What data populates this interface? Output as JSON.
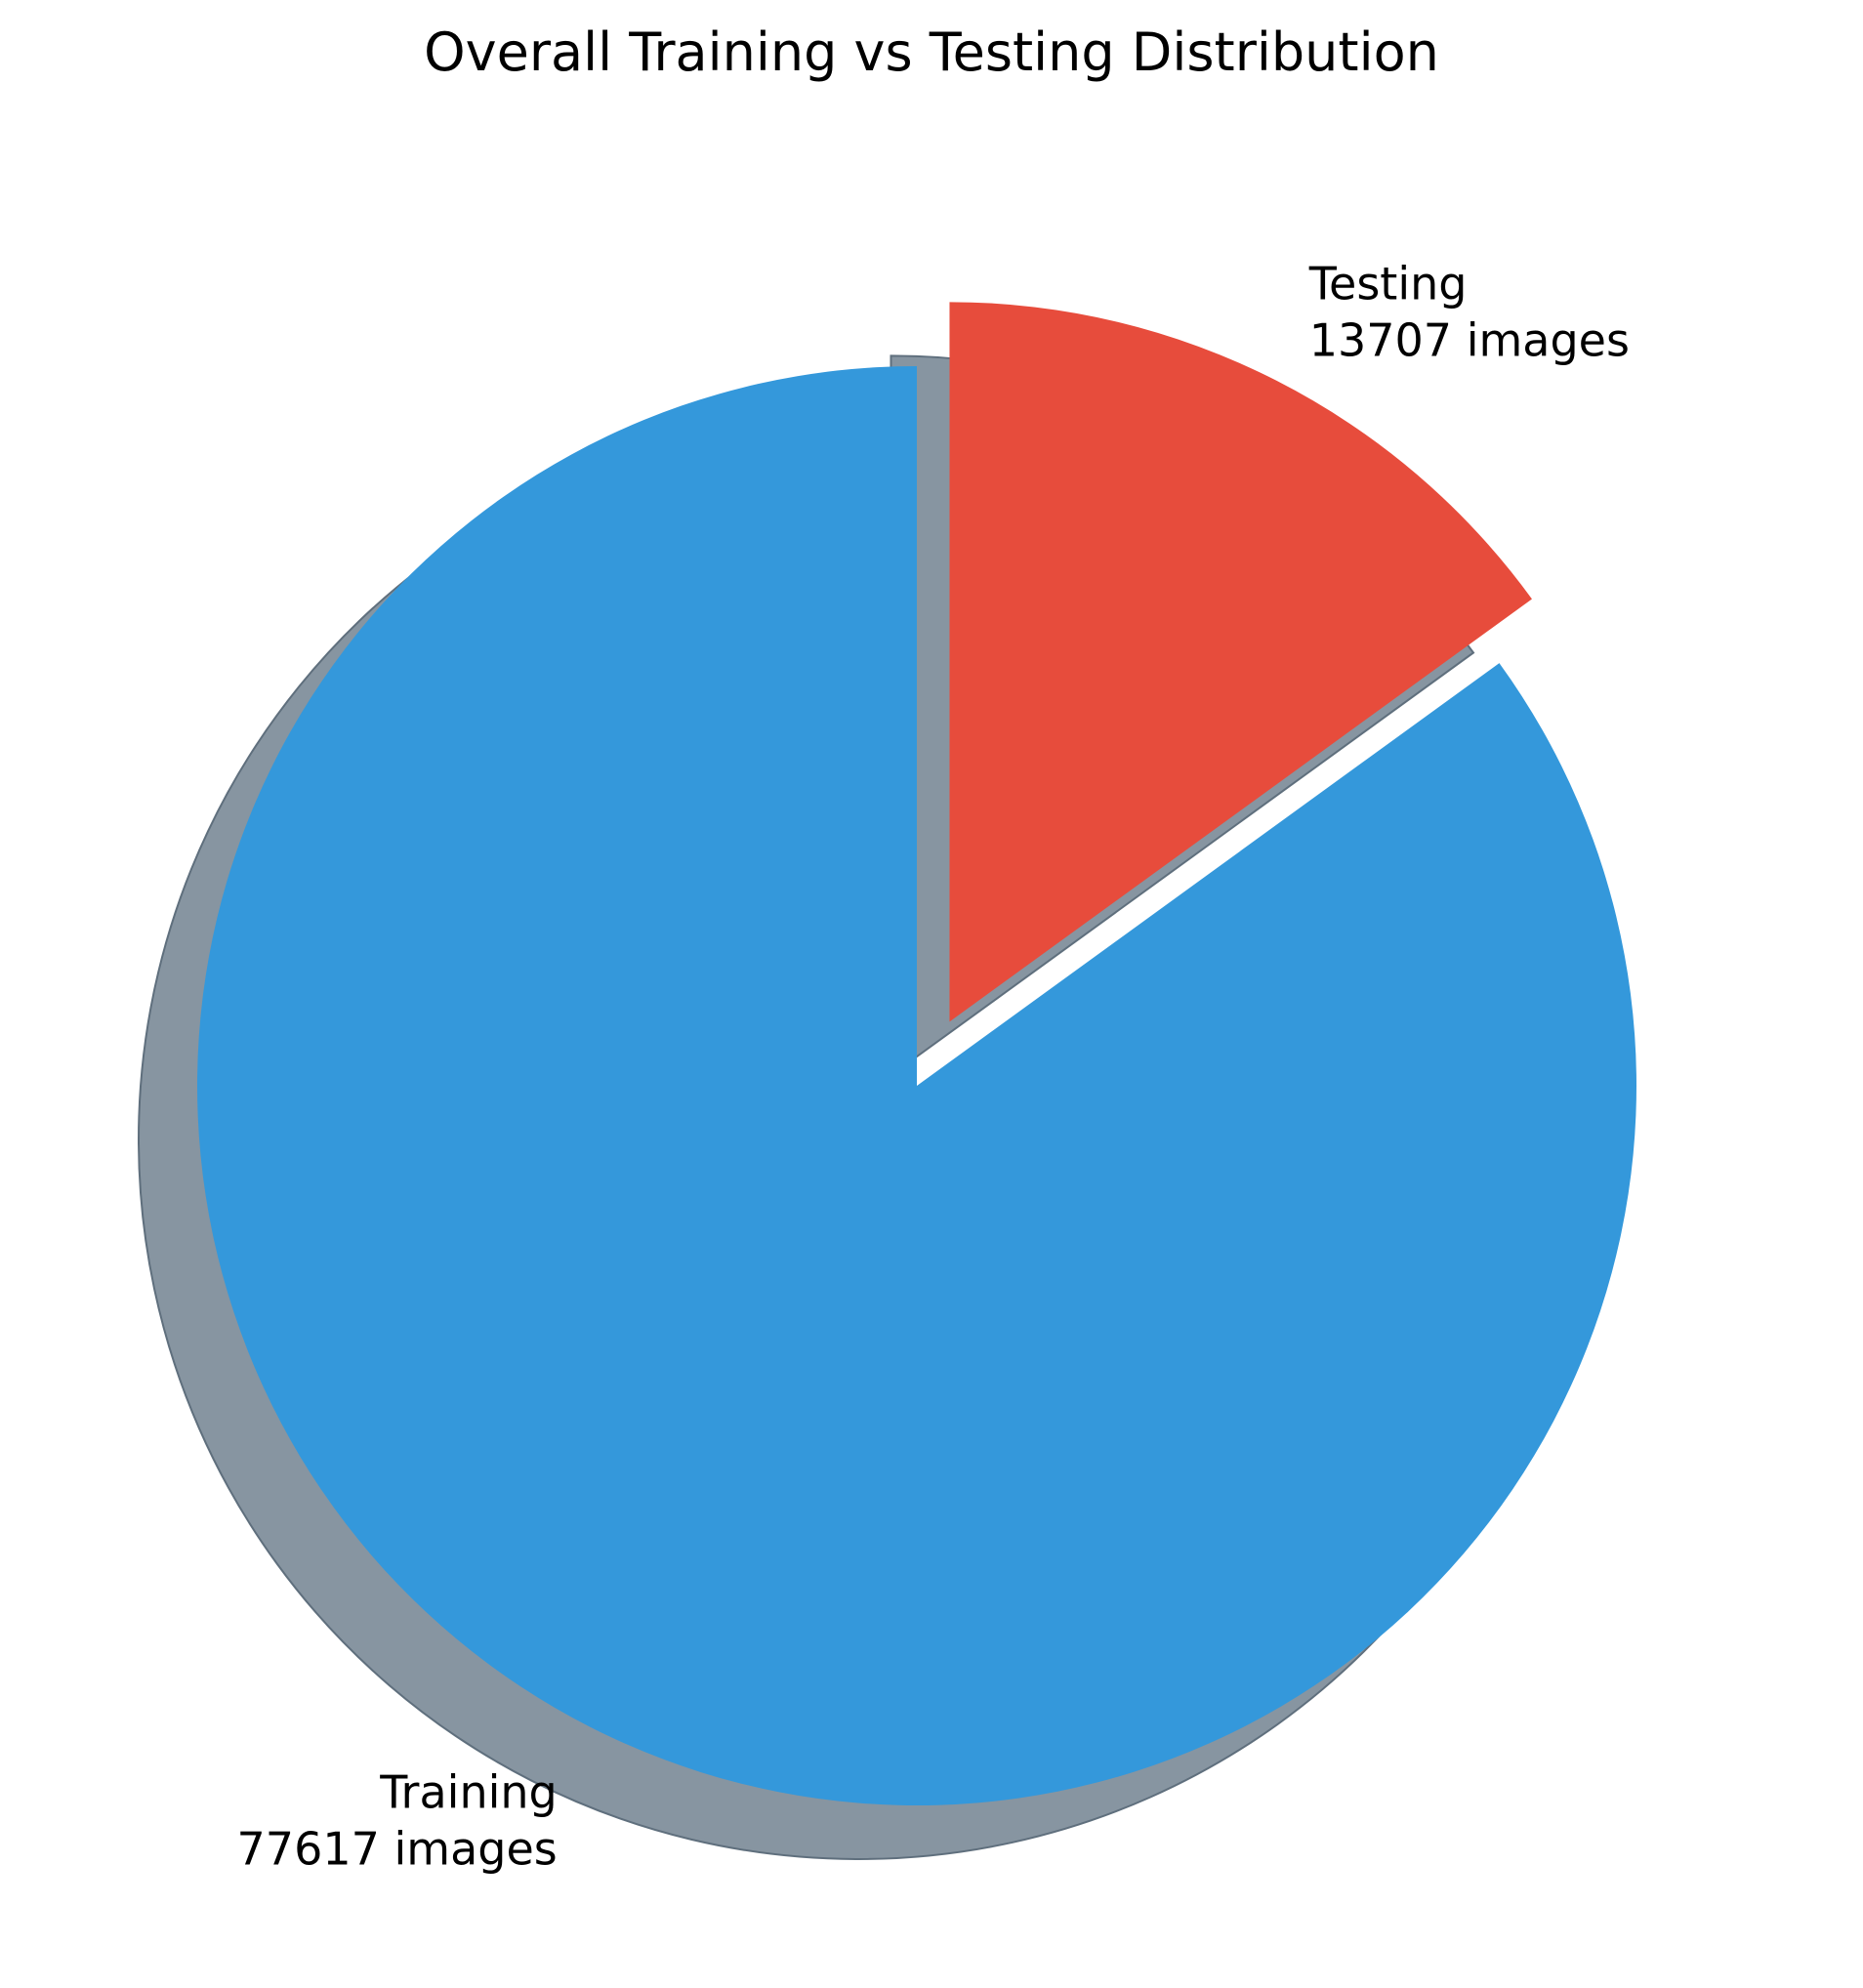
{
  "chart_data": {
    "type": "pie",
    "title": "Overall Training vs Testing Distribution",
    "start_angle_deg": 90,
    "direction": "clockwise",
    "shadow": true,
    "slices": [
      {
        "label": "Testing",
        "value_text": "13707 images",
        "value": 13707,
        "color": "#e74c3c",
        "exploded": true
      },
      {
        "label": "Training",
        "value_text": "77617 images",
        "value": 77617,
        "color": "#3498db",
        "exploded": false
      }
    ],
    "shadow_color": "#8795a1"
  }
}
